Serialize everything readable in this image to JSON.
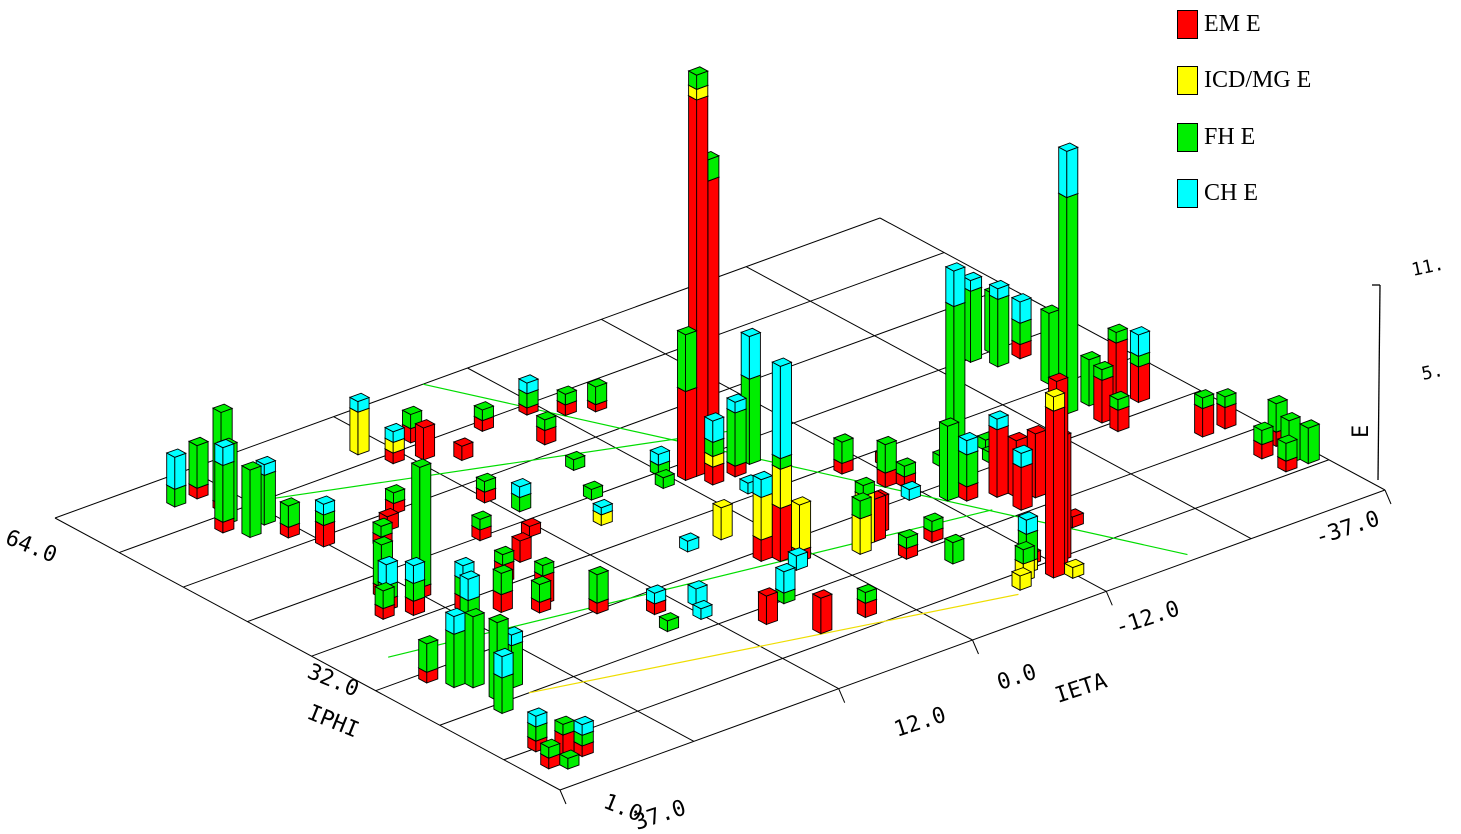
{
  "chart_data": {
    "type": "bar",
    "subtype": "3d-lego",
    "title": "",
    "x_axis": {
      "label": "IETA",
      "ticks": [
        "37.0",
        "12.0",
        "0.0",
        "-12.0",
        "-37.0"
      ],
      "range": [
        37,
        -37
      ]
    },
    "y_axis": {
      "label": "IPHI",
      "ticks": [
        "1.0",
        "32.0",
        "64.0"
      ],
      "range": [
        1,
        64
      ]
    },
    "z_axis": {
      "label": "E",
      "ticks": [
        "5.",
        "11."
      ],
      "range": [
        0,
        11
      ]
    },
    "grid": true,
    "legend_position": "top-right",
    "series": [
      {
        "name": "EM E",
        "color": "#ff0000"
      },
      {
        "name": "ICD/MG E",
        "color": "#ffff00"
      },
      {
        "name": "FH E",
        "color": "#00ee00"
      },
      {
        "name": "CH E",
        "color": "#00ffff"
      }
    ],
    "towers": [
      {
        "ieta": -2,
        "iphi": 38,
        "em": 10.6,
        "icd": 0.3,
        "fh": 0.4,
        "ch": 0
      },
      {
        "ieta": -3,
        "iphi": 38,
        "em": 8.2,
        "icd": 0,
        "fh": 0.6,
        "ch": 0
      },
      {
        "ieta": -1,
        "iphi": 38,
        "em": 2.5,
        "icd": 0,
        "fh": 1.6,
        "ch": 0
      },
      {
        "ieta": -2,
        "iphi": 36,
        "em": 0.5,
        "icd": 0.3,
        "fh": 0.4,
        "ch": 0.6
      },
      {
        "ieta": -6,
        "iphi": 37,
        "em": 0,
        "icd": 0,
        "fh": 2.4,
        "ch": 1.2
      },
      {
        "ieta": -4,
        "iphi": 36,
        "em": 0.3,
        "icd": 0,
        "fh": 1.5,
        "ch": 0.3
      },
      {
        "ieta": -15,
        "iphi": 24,
        "em": 0.2,
        "icd": 0,
        "fh": 4.8,
        "ch": 1.0
      },
      {
        "ieta": -13,
        "iphi": 22,
        "em": 0,
        "icd": 0,
        "fh": 2.1,
        "ch": 0
      },
      {
        "ieta": -14,
        "iphi": 21,
        "em": 0.4,
        "icd": 0,
        "fh": 0.9,
        "ch": 0.4
      },
      {
        "ieta": -16,
        "iphi": 20,
        "em": 1.9,
        "icd": 0,
        "fh": 0,
        "ch": 0.3
      },
      {
        "ieta": -17,
        "iphi": 19,
        "em": 1.6,
        "icd": 0,
        "fh": 0,
        "ch": 0
      },
      {
        "ieta": -18,
        "iphi": 18,
        "em": 1.8,
        "icd": 0,
        "fh": 0,
        "ch": 0
      },
      {
        "ieta": -16,
        "iphi": 17,
        "em": 1.2,
        "icd": 0,
        "fh": 0,
        "ch": 0.4
      },
      {
        "ieta": -19,
        "iphi": 19,
        "em": 1.0,
        "icd": 0,
        "fh": 0,
        "ch": 0
      },
      {
        "ieta": -12,
        "iphi": 7,
        "em": 5.3,
        "icd": 0,
        "fh": 0,
        "ch": 0
      },
      {
        "ieta": -11,
        "iphi": 6,
        "em": 4.7,
        "icd": 0.4,
        "fh": 0,
        "ch": 0
      },
      {
        "ieta": -13,
        "iphi": 8,
        "em": 3.5,
        "icd": 0,
        "fh": 0,
        "ch": 0
      },
      {
        "ieta": -10,
        "iphi": 8,
        "em": 0,
        "icd": 0.3,
        "fh": 0.8,
        "ch": 0.4
      },
      {
        "ieta": -9,
        "iphi": 7,
        "em": 0,
        "icd": 0.5,
        "fh": 0.4,
        "ch": 0
      },
      {
        "ieta": -11,
        "iphi": 9,
        "em": 0.3,
        "icd": 0,
        "fh": 0,
        "ch": 0
      },
      {
        "ieta": -12,
        "iphi": 5,
        "em": 0,
        "icd": 0.3,
        "fh": 0,
        "ch": 0
      },
      {
        "ieta": -8,
        "iphi": 6,
        "em": 0,
        "icd": 0.4,
        "fh": 0,
        "ch": 0
      },
      {
        "ieta": 2,
        "iphi": 22,
        "em": 1.5,
        "icd": 1.1,
        "fh": 0.3,
        "ch": 2.6
      },
      {
        "ieta": 3,
        "iphi": 23,
        "em": 0.6,
        "icd": 1.2,
        "fh": 0,
        "ch": 0.5
      },
      {
        "ieta": 1,
        "iphi": 21,
        "em": 0.3,
        "icd": 1.3,
        "fh": 0,
        "ch": 0
      },
      {
        "ieta": 2,
        "iphi": 20,
        "em": 0,
        "icd": 0,
        "fh": 0,
        "ch": 0.4
      },
      {
        "ieta": -4,
        "iphi": 20,
        "em": 0,
        "icd": 1.4,
        "fh": 0.3,
        "ch": 0
      },
      {
        "ieta": -5,
        "iphi": 20,
        "em": 1.2,
        "icd": 0,
        "fh": 0,
        "ch": 0
      },
      {
        "ieta": -6,
        "iphi": 21,
        "em": 1.0,
        "icd": 0,
        "fh": 0,
        "ch": 0
      },
      {
        "ieta": -3,
        "iphi": 19,
        "em": 0,
        "icd": 1.0,
        "fh": 0.5,
        "ch": 0
      },
      {
        "ieta": 27,
        "iphi": 57,
        "em": 0.2,
        "icd": 0,
        "fh": 2.6,
        "ch": 0
      },
      {
        "ieta": 28,
        "iphi": 55,
        "em": 0,
        "icd": 0,
        "fh": 2.2,
        "ch": 0
      },
      {
        "ieta": 29,
        "iphi": 54,
        "em": 0.3,
        "icd": 0,
        "fh": 1.6,
        "ch": 0.5
      },
      {
        "ieta": 28,
        "iphi": 52,
        "em": 0,
        "icd": 0,
        "fh": 1.9,
        "ch": 0
      },
      {
        "ieta": 27,
        "iphi": 60,
        "em": 0.3,
        "icd": 0,
        "fh": 1.2,
        "ch": 0
      },
      {
        "ieta": 29,
        "iphi": 60,
        "em": 0,
        "icd": 0,
        "fh": 0.5,
        "ch": 0.9
      },
      {
        "ieta": 26,
        "iphi": 53,
        "em": 0,
        "icd": 0,
        "fh": 1.4,
        "ch": 0.3
      },
      {
        "ieta": 26,
        "iphi": 50,
        "em": 0.3,
        "icd": 0,
        "fh": 0.6,
        "ch": 0
      },
      {
        "ieta": 25,
        "iphi": 35,
        "em": 0.3,
        "icd": 0,
        "fh": 3.4,
        "ch": 0
      },
      {
        "ieta": 27,
        "iphi": 37,
        "em": 0.3,
        "icd": 0,
        "fh": 1.2,
        "ch": 0
      },
      {
        "ieta": 28,
        "iphi": 35,
        "em": 0.3,
        "icd": 0,
        "fh": 0.4,
        "ch": 0.6
      },
      {
        "ieta": 27,
        "iphi": 33,
        "em": 0.4,
        "icd": 0,
        "fh": 0.5,
        "ch": 0.5
      },
      {
        "ieta": 24,
        "iphi": 31,
        "em": 0.4,
        "icd": 0,
        "fh": 0.5,
        "ch": 0.4
      },
      {
        "ieta": 29,
        "iphi": 34,
        "em": 0.3,
        "icd": 0,
        "fh": 0.5,
        "ch": 0
      },
      {
        "ieta": 30,
        "iphi": 22,
        "em": 0.3,
        "icd": 0,
        "fh": 1.8,
        "ch": 0.6
      },
      {
        "ieta": 31,
        "iphi": 20,
        "em": 0,
        "icd": 0,
        "fh": 2.0,
        "ch": 0
      },
      {
        "ieta": 32,
        "iphi": 21,
        "em": 0,
        "icd": 0,
        "fh": 1.5,
        "ch": 0.5
      },
      {
        "ieta": 31,
        "iphi": 17,
        "em": 0,
        "icd": 0,
        "fh": 2.2,
        "ch": 0
      },
      {
        "ieta": 29,
        "iphi": 18,
        "em": 0,
        "icd": 0,
        "fh": 1.2,
        "ch": 0.3
      },
      {
        "ieta": 32,
        "iphi": 15,
        "em": 0,
        "icd": 0,
        "fh": 1.0,
        "ch": 0.6
      },
      {
        "ieta": 33,
        "iphi": 23,
        "em": 0.3,
        "icd": 0,
        "fh": 0.8,
        "ch": 0
      },
      {
        "ieta": 34,
        "iphi": 8,
        "em": 0.3,
        "icd": 0,
        "fh": 0.4,
        "ch": 0.3
      },
      {
        "ieta": 33,
        "iphi": 6,
        "em": 0.6,
        "icd": 0,
        "fh": 0.3,
        "ch": 0
      },
      {
        "ieta": 35,
        "iphi": 5,
        "em": 0.3,
        "icd": 0,
        "fh": 0.3,
        "ch": 0
      },
      {
        "ieta": 32,
        "iphi": 5,
        "em": 0.3,
        "icd": 0,
        "fh": 0.3,
        "ch": 0.3
      },
      {
        "ieta": 34,
        "iphi": 4,
        "em": 0,
        "icd": 0,
        "fh": 0.3,
        "ch": 0
      },
      {
        "ieta": -28,
        "iphi": 40,
        "em": 0,
        "icd": 0,
        "fh": 2.0,
        "ch": 0.3
      },
      {
        "ieta": -29,
        "iphi": 38,
        "em": 0,
        "icd": 0,
        "fh": 1.9,
        "ch": 0.3
      },
      {
        "ieta": -30,
        "iphi": 40,
        "em": 0,
        "icd": 0,
        "fh": 1.7,
        "ch": 0
      },
      {
        "ieta": -31,
        "iphi": 38,
        "em": 0.4,
        "icd": 0,
        "fh": 0.6,
        "ch": 0.6
      },
      {
        "ieta": -30,
        "iphi": 33,
        "em": 0,
        "icd": 0,
        "fh": 2.0,
        "ch": 0
      },
      {
        "ieta": -31,
        "iphi": 33,
        "em": 0,
        "icd": 0,
        "fh": 1.2,
        "ch": 0
      },
      {
        "ieta": -28,
        "iphi": 28,
        "em": 0,
        "icd": 0,
        "fh": 6.1,
        "ch": 1.3
      },
      {
        "ieta": -30,
        "iphi": 28,
        "em": 0,
        "icd": 0,
        "fh": 1.3,
        "ch": 0
      },
      {
        "ieta": -29,
        "iphi": 25,
        "em": 1.2,
        "icd": 0,
        "fh": 0.3,
        "ch": 0
      },
      {
        "ieta": -31,
        "iphi": 26,
        "em": 1.9,
        "icd": 0,
        "fh": 0.3,
        "ch": 0
      },
      {
        "ieta": -33,
        "iphi": 26,
        "em": 1.0,
        "icd": 0,
        "fh": 0.3,
        "ch": 0.6
      },
      {
        "ieta": -29,
        "iphi": 23,
        "em": 0.6,
        "icd": 0,
        "fh": 0.3,
        "ch": 0
      },
      {
        "ieta": -33,
        "iphi": 18,
        "em": 0.8,
        "icd": 0,
        "fh": 0.3,
        "ch": 0
      },
      {
        "ieta": -35,
        "iphi": 18,
        "em": 0.6,
        "icd": 0,
        "fh": 0.3,
        "ch": 0
      },
      {
        "ieta": -34,
        "iphi": 12,
        "em": 0.4,
        "icd": 0,
        "fh": 0.4,
        "ch": 0
      },
      {
        "ieta": -36,
        "iphi": 13,
        "em": 0.4,
        "icd": 0,
        "fh": 0.8,
        "ch": 0
      },
      {
        "ieta": -35,
        "iphi": 10,
        "em": 0,
        "icd": 0,
        "fh": 1.2,
        "ch": 0
      },
      {
        "ieta": -36,
        "iphi": 9,
        "em": 0,
        "icd": 0,
        "fh": 1.0,
        "ch": 0
      },
      {
        "ieta": -34,
        "iphi": 9,
        "em": 0.3,
        "icd": 0,
        "fh": 0.5,
        "ch": 0
      },
      {
        "ieta": 14,
        "iphi": 58,
        "em": 0,
        "icd": 1.2,
        "fh": 0,
        "ch": 0.3
      },
      {
        "ieta": 13,
        "iphi": 55,
        "em": 0.3,
        "icd": 0.3,
        "fh": 0,
        "ch": 0.3
      },
      {
        "ieta": 11,
        "iphi": 54,
        "em": 0.9,
        "icd": 0,
        "fh": 0,
        "ch": 0
      },
      {
        "ieta": 9,
        "iphi": 52,
        "em": 0.4,
        "icd": 0,
        "fh": 0,
        "ch": 0
      },
      {
        "ieta": 10,
        "iphi": 57,
        "em": 0.4,
        "icd": 0,
        "fh": 0.4,
        "ch": 0
      },
      {
        "ieta": 5,
        "iphi": 55,
        "em": 0.3,
        "icd": 0,
        "fh": 0.3,
        "ch": 0
      },
      {
        "ieta": 1,
        "iphi": 55,
        "em": 0.2,
        "icd": 0,
        "fh": 0.4,
        "ch": 0.3
      },
      {
        "ieta": -1,
        "iphi": 53,
        "em": 0.3,
        "icd": 0,
        "fh": 0.3,
        "ch": 0
      },
      {
        "ieta": -3,
        "iphi": 52,
        "em": 0.2,
        "icd": 0,
        "fh": 0.5,
        "ch": 0
      },
      {
        "ieta": 3,
        "iphi": 50,
        "em": 0.4,
        "icd": 0,
        "fh": 0.3,
        "ch": 0
      },
      {
        "ieta": 6,
        "iphi": 40,
        "em": 0,
        "icd": 0,
        "fh": 0.3,
        "ch": 0
      },
      {
        "ieta": 3,
        "iphi": 28,
        "em": 0,
        "icd": 0.9,
        "fh": 0,
        "ch": 0
      },
      {
        "ieta": 8,
        "iphi": 36,
        "em": 0,
        "icd": 0.3,
        "fh": 0,
        "ch": 0.2
      },
      {
        "ieta": 13,
        "iphi": 38,
        "em": 0.3,
        "icd": 0,
        "fh": 0,
        "ch": 0
      },
      {
        "ieta": 20,
        "iphi": 46,
        "em": 0.4,
        "icd": 0,
        "fh": 0,
        "ch": 0
      },
      {
        "ieta": 18,
        "iphi": 48,
        "em": 0.3,
        "icd": 0,
        "fh": 0.3,
        "ch": 0
      },
      {
        "ieta": 25,
        "iphi": 47,
        "em": 0.6,
        "icd": 0,
        "fh": 0.3,
        "ch": 0.3
      },
      {
        "ieta": 22,
        "iphi": 44,
        "em": 0.3,
        "icd": 0,
        "fh": 0.3,
        "ch": 0
      },
      {
        "ieta": 12,
        "iphi": 45,
        "em": 0.3,
        "icd": 0,
        "fh": 0.3,
        "ch": 0
      },
      {
        "ieta": 11,
        "iphi": 42,
        "em": 0,
        "icd": 0,
        "fh": 0.4,
        "ch": 0.3
      },
      {
        "ieta": 16,
        "iphi": 40,
        "em": 0.3,
        "icd": 0,
        "fh": 0.3,
        "ch": 0
      },
      {
        "ieta": 16,
        "iphi": 35,
        "em": 0.6,
        "icd": 0,
        "fh": 0,
        "ch": 0
      },
      {
        "ieta": 19,
        "iphi": 33,
        "em": 0.5,
        "icd": 0,
        "fh": 0.3,
        "ch": 0
      },
      {
        "ieta": 19,
        "iphi": 28,
        "em": 0.8,
        "icd": 0,
        "fh": 0.3,
        "ch": 0
      },
      {
        "ieta": 22,
        "iphi": 29,
        "em": 0.5,
        "icd": 0,
        "fh": 0.6,
        "ch": 0
      },
      {
        "ieta": 20,
        "iphi": 27,
        "em": 0.3,
        "icd": 0,
        "fh": 0.5,
        "ch": 0
      },
      {
        "ieta": 17,
        "iphi": 24,
        "em": 0.3,
        "icd": 0,
        "fh": 0.8,
        "ch": 0
      },
      {
        "ieta": 14,
        "iphi": 21,
        "em": 0.3,
        "icd": 0,
        "fh": 0,
        "ch": 0.3
      },
      {
        "ieta": 11,
        "iphi": 20,
        "em": 0,
        "icd": 0,
        "fh": 0,
        "ch": 0.5
      },
      {
        "ieta": 12,
        "iphi": 18,
        "em": 0,
        "icd": 0,
        "fh": 0,
        "ch": 0.3
      },
      {
        "ieta": 9,
        "iphi": 14,
        "em": 0.8,
        "icd": 0,
        "fh": 0,
        "ch": 0
      },
      {
        "ieta": 6,
        "iphi": 16,
        "em": 0,
        "icd": 0,
        "fh": 0.3,
        "ch": 0.6
      },
      {
        "ieta": 7,
        "iphi": 10,
        "em": 1.0,
        "icd": 0,
        "fh": 0,
        "ch": 0
      },
      {
        "ieta": 3,
        "iphi": 10,
        "em": 0.4,
        "icd": 0,
        "fh": 0.3,
        "ch": 0
      },
      {
        "ieta": -8,
        "iphi": 17,
        "em": 0.3,
        "icd": 0,
        "fh": 0.3,
        "ch": 0
      },
      {
        "ieta": -7,
        "iphi": 13,
        "em": 0,
        "icd": 0,
        "fh": 0.6,
        "ch": 0
      },
      {
        "ieta": -13,
        "iphi": 30,
        "em": 0.3,
        "icd": 0,
        "fh": 0,
        "ch": 0
      },
      {
        "ieta": -16,
        "iphi": 27,
        "em": 0,
        "icd": 0,
        "fh": 0.3,
        "ch": 0
      },
      {
        "ieta": -3,
        "iphi": 33,
        "em": 0,
        "icd": 0,
        "fh": 0,
        "ch": 0.3
      },
      {
        "ieta": -10,
        "iphi": 31,
        "em": 0.3,
        "icd": 0,
        "fh": 0.6,
        "ch": 0
      },
      {
        "ieta": -11,
        "iphi": 27,
        "em": 0.4,
        "icd": 0,
        "fh": 0.8,
        "ch": 0
      },
      {
        "ieta": -12,
        "iphi": 26,
        "em": 0.3,
        "icd": 0,
        "fh": 0.3,
        "ch": 0
      },
      {
        "ieta": -11,
        "iphi": 24,
        "em": 0,
        "icd": 0,
        "fh": 0,
        "ch": 0.3
      },
      {
        "ieta": -6,
        "iphi": 23,
        "em": 0,
        "icd": 0,
        "fh": 0.3,
        "ch": 0
      },
      {
        "ieta": -5,
        "iphi": 16,
        "em": 0.3,
        "icd": 0,
        "fh": 0.3,
        "ch": 0
      },
      {
        "ieta": 1,
        "iphi": 38,
        "em": 0,
        "icd": 0,
        "fh": 0.3,
        "ch": 0
      },
      {
        "ieta": 0,
        "iphi": 40,
        "em": 0,
        "icd": 0,
        "fh": 0.3,
        "ch": 0.3
      },
      {
        "ieta": 6,
        "iphi": 28,
        "em": 0,
        "icd": 0,
        "fh": 0,
        "ch": 0.3
      },
      {
        "ieta": -17,
        "iphi": 12,
        "em": 0.3,
        "icd": 0,
        "fh": 0,
        "ch": 0
      },
      {
        "ieta": -20,
        "iphi": 27,
        "em": 0,
        "icd": 0,
        "fh": 0.3,
        "ch": 0
      },
      {
        "ieta": -19,
        "iphi": 25,
        "em": 0,
        "icd": 0,
        "fh": 0.3,
        "ch": 0
      },
      {
        "ieta": 4,
        "iphi": 45,
        "em": 0,
        "icd": 0,
        "fh": 0.3,
        "ch": 0
      },
      {
        "ieta": 15,
        "iphi": 18,
        "em": 0,
        "icd": 0,
        "fh": 0.3,
        "ch": 0
      }
    ]
  }
}
